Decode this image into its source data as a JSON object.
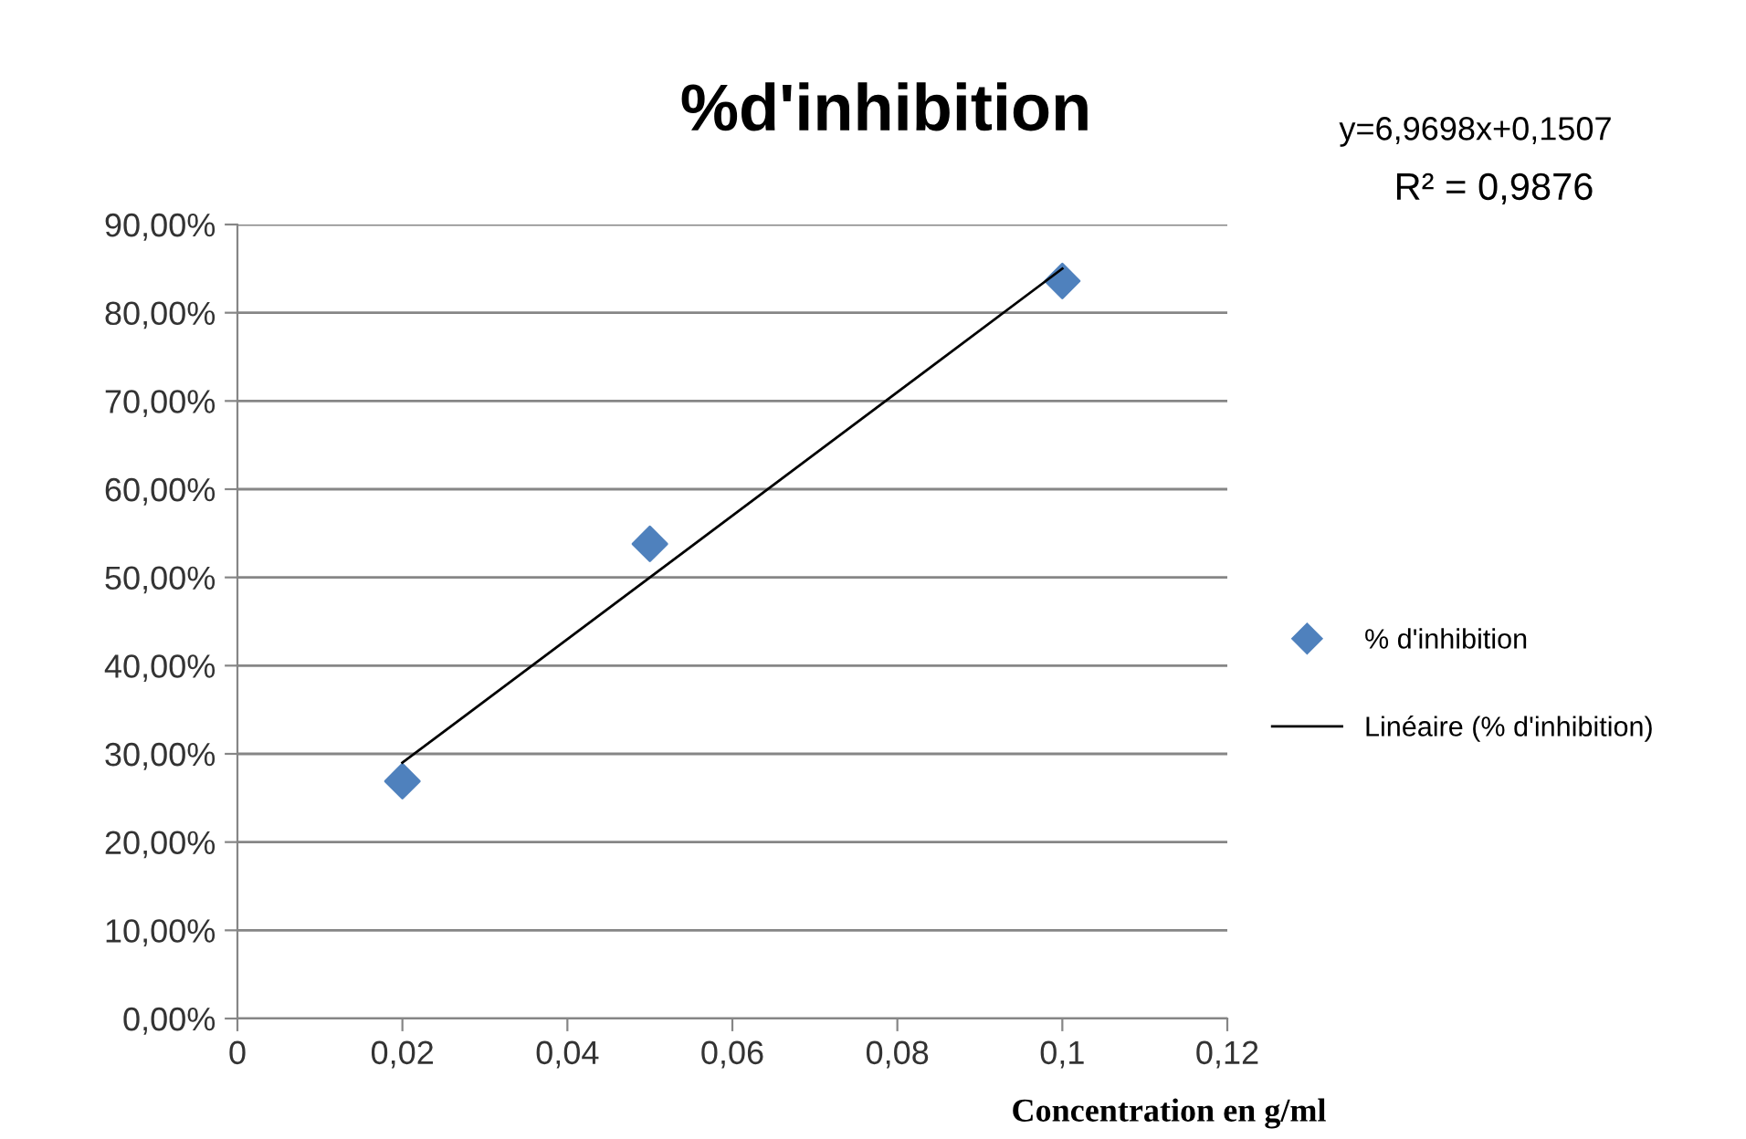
{
  "chart_data": {
    "type": "scatter",
    "title": "%d'inhibition",
    "xlabel": "Concentration en g/ml",
    "series": [
      {
        "name": "% d'inhibition",
        "color": "#4f81bd",
        "marker": "diamond",
        "x": [
          0.02,
          0.05,
          0.1
        ],
        "values": [
          0.269,
          0.538,
          0.836
        ]
      },
      {
        "name": "Linéaire (% d'inhibition)",
        "type": "line",
        "color": "#000000",
        "marker": "none",
        "line_style": "solid",
        "x": [
          0.02,
          0.1
        ],
        "values": [
          0.29,
          0.85
        ]
      }
    ],
    "xlim": [
      0,
      0.12
    ],
    "xticks": [
      0,
      {
        "value": 0.02,
        "label": "0,02"
      },
      {
        "value": 0.04,
        "label": "0,04"
      },
      {
        "value": 0.06,
        "label": "0,06"
      },
      {
        "value": 0.08,
        "label": "0,08"
      },
      {
        "value": 0.1,
        "label": "0,1"
      },
      {
        "value": 0.12,
        "label": "0,12"
      }
    ],
    "ylim": [
      0,
      0.9
    ],
    "yticks": [
      {
        "value": 0,
        "label": "0,00%"
      },
      {
        "value": 0.1,
        "label": "10,00%"
      },
      {
        "value": 0.2,
        "label": "20,00%"
      },
      {
        "value": 0.3,
        "label": "30,00%"
      },
      {
        "value": 0.4,
        "label": "40,00%"
      },
      {
        "value": 0.5,
        "label": "50,00%"
      },
      {
        "value": 0.6,
        "label": "60,00%"
      },
      {
        "value": 0.7,
        "label": "70,00%"
      },
      {
        "value": 0.8,
        "label": "80,00%"
      },
      {
        "value": 0.9,
        "label": "90,00%"
      }
    ],
    "grid": "y",
    "legend": "right",
    "annotations": [
      "y=6,9698x+0,1507",
      "R² = 0,9876"
    ]
  }
}
